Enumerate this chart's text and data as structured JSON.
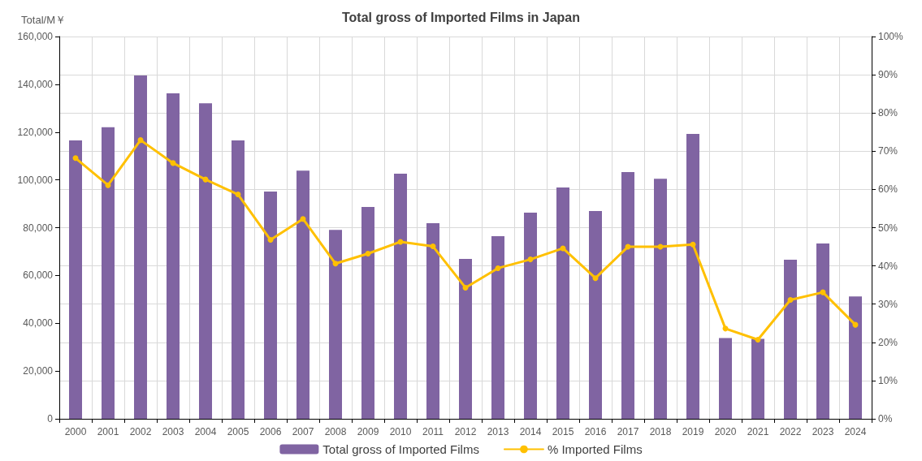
{
  "chart_data": {
    "type": "bar",
    "title": "Total gross of Imported Films in Japan",
    "ylabel": "Total/M￥",
    "categories": [
      "2000",
      "2001",
      "2002",
      "2003",
      "2004",
      "2005",
      "2006",
      "2007",
      "2008",
      "2009",
      "2010",
      "2011",
      "2012",
      "2013",
      "2014",
      "2015",
      "2016",
      "2017",
      "2018",
      "2019",
      "2020",
      "2021",
      "2022",
      "2023",
      "2024"
    ],
    "series": [
      {
        "name": "Total gross of Imported Films",
        "color": "#8064a2",
        "values": [
          116500,
          122000,
          143700,
          136200,
          132100,
          116500,
          95100,
          103900,
          79100,
          88700,
          102600,
          81900,
          66900,
          76400,
          86300,
          96800,
          87000,
          103300,
          100500,
          119200,
          33800,
          33500,
          66600,
          73400,
          51200
        ]
      },
      {
        "name": "% Imported Films",
        "type": "line",
        "axis": "y2",
        "color": "#ffc000",
        "values": [
          68.2,
          61.1,
          72.9,
          66.9,
          62.6,
          58.7,
          46.8,
          52.3,
          40.6,
          43.2,
          46.3,
          45.1,
          34.3,
          39.4,
          41.7,
          44.6,
          36.8,
          45.0,
          45.0,
          45.6,
          23.6,
          20.7,
          31.1,
          33.1,
          24.6
        ]
      }
    ],
    "ylim": [
      0,
      160000
    ],
    "yticks": [
      {
        "value": 0,
        "label": "0"
      },
      {
        "value": 20000,
        "label": "20,000"
      },
      {
        "value": 40000,
        "label": "40,000"
      },
      {
        "value": 60000,
        "label": "60,000"
      },
      {
        "value": 80000,
        "label": "80,000"
      },
      {
        "value": 100000,
        "label": "100,000"
      },
      {
        "value": 120000,
        "label": "120,000"
      },
      {
        "value": 140000,
        "label": "140,000"
      },
      {
        "value": 160000,
        "label": "160,000"
      }
    ],
    "y2lim": [
      0,
      100
    ],
    "y2ticks": [
      {
        "value": 0,
        "label": "0%"
      },
      {
        "value": 10,
        "label": "10%"
      },
      {
        "value": 20,
        "label": "20%"
      },
      {
        "value": 30,
        "label": "30%"
      },
      {
        "value": 40,
        "label": "40%"
      },
      {
        "value": 50,
        "label": "50%"
      },
      {
        "value": 60,
        "label": "60%"
      },
      {
        "value": 70,
        "label": "70%"
      },
      {
        "value": 80,
        "label": "80%"
      },
      {
        "value": 90,
        "label": "90%"
      },
      {
        "value": 100,
        "label": "100%"
      }
    ],
    "grid": true,
    "legend": "bottom",
    "marker": "circle",
    "line_style": "solid"
  }
}
